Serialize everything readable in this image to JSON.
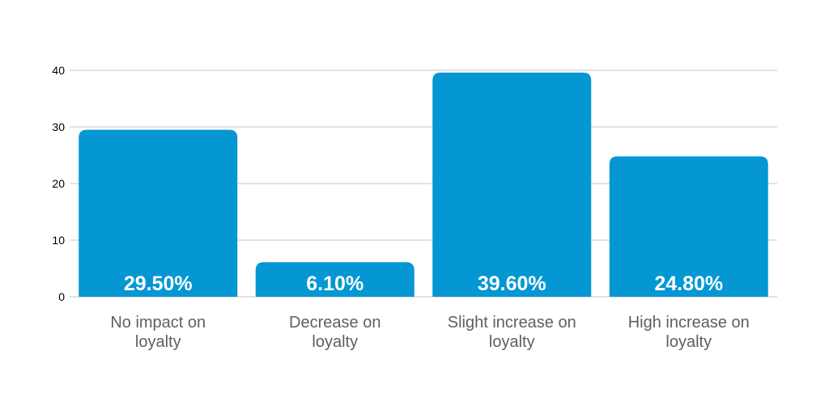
{
  "chart_data": {
    "type": "bar",
    "categories": [
      [
        "No impact on",
        "loyalty"
      ],
      [
        "Decrease on",
        "loyalty"
      ],
      [
        "Slight increase on",
        "loyalty"
      ],
      [
        "High increase on",
        "loyalty"
      ]
    ],
    "values": [
      29.5,
      6.1,
      39.6,
      24.8
    ],
    "data_labels": [
      "29.50%",
      "6.10%",
      "39.60%",
      "24.80%"
    ],
    "title": "",
    "xlabel": "",
    "ylabel": "",
    "ylim": [
      0,
      40
    ],
    "yticks": [
      0,
      10,
      20,
      30,
      40
    ],
    "grid": true,
    "legend": "none",
    "colors": {
      "bar": "#0497d4",
      "grid": "#d9d9d9",
      "category_text": "#5f5f5f",
      "tick_text": "#000000",
      "data_label_text": "#ffffff"
    }
  }
}
